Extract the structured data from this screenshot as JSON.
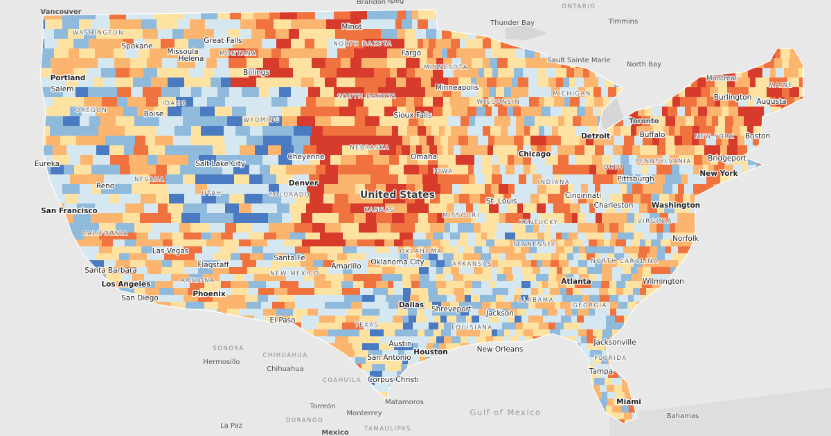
{
  "map": {
    "palette": [
      "#2f3f9e",
      "#4a7bc2",
      "#8fbadc",
      "#d5e8f2",
      "#fde2a2",
      "#fbb56e",
      "#f0733f",
      "#d73b2c"
    ],
    "labels": {
      "country": "United States",
      "states": [
        "WASHINGTON",
        "MONTANA",
        "NORTH DAKOTA",
        "MINNESOTA",
        "OREGON",
        "IDAHO",
        "SOUTH DAKOTA",
        "WYOMING",
        "NEBRASKA",
        "NEVADA",
        "UTAH",
        "COLORADO",
        "KANSAS",
        "MISSOURI",
        "CALIFORNIA",
        "ARIZONA",
        "NEW MEXICO",
        "OKLAHOMA",
        "TEXAS",
        "ARKANSAS",
        "LOUISIANA",
        "ALABAMA",
        "GEORGIA",
        "FLORIDA",
        "TENNESSEE",
        "KENTUCKY",
        "NORTH CAROLINA",
        "VIRGINIA",
        "INDIANA",
        "OHIO",
        "MICHIGAN",
        "WISCONSIN",
        "IOWA",
        "PENNSYLVANIA",
        "NEW YORK",
        "MAINE"
      ],
      "cities": [
        "Vancouver",
        "Spokane",
        "Great Falls",
        "Minot",
        "Fargo",
        "Missoula",
        "Helena",
        "Billings",
        "Portland",
        "Salem",
        "Boise",
        "Sioux Falls",
        "Minneapolis",
        "Eureka",
        "Salt Lake City",
        "Cheyenne",
        "Denver",
        "Omaha",
        "Reno",
        "San Francisco",
        "St. Louis",
        "Chicago",
        "Detroit",
        "Pittsburgh",
        "Cincinnati",
        "Charleston",
        "Washington",
        "Norfolk",
        "Las Vegas",
        "Santa Fe",
        "Flagstaff",
        "Amarillo",
        "Oklahoma City",
        "Santa Barbara",
        "Los Angeles",
        "San Diego",
        "Phoenix",
        "El Paso",
        "Dallas",
        "Shreveport",
        "Jackson",
        "Atlanta",
        "Wilmington",
        "Austin",
        "San Antonio",
        "Houston",
        "New Orleans",
        "Jacksonville",
        "Corpus Christi",
        "Matamoros",
        "Tampa",
        "Miami",
        "Buffalo",
        "Bridgeport",
        "New York",
        "Boston",
        "Augusta",
        "Burlington",
        "Montreal",
        "Toronto",
        "Sault Sainte Marie",
        "Thunder Bay",
        "Winnipeg",
        "Brandon",
        "Timmins",
        "North Bay",
        "Hermosillo",
        "Chihuahua",
        "Torreón",
        "Monterrey",
        "La Paz",
        "Bahamas",
        "Mexico"
      ],
      "regions": [
        "ONTARIO",
        "SONORA",
        "CHIHUAHUA",
        "COAHUILA",
        "DURANGO",
        "TAMAULIPAS"
      ],
      "water": [
        "Gulf of Mexico"
      ]
    }
  }
}
